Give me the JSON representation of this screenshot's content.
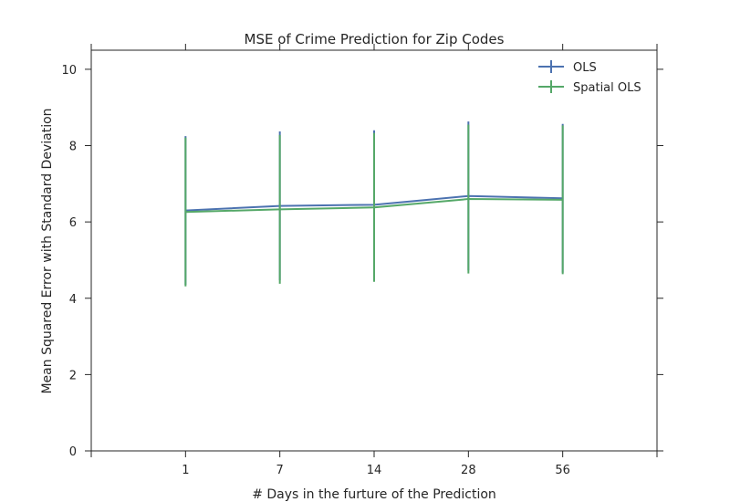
{
  "chart_data": {
    "type": "line",
    "title": "MSE of Crime Prediction for Zip Codes",
    "xlabel": "# Days in the furture of the Prediction",
    "ylabel": "Mean Squared Error with Standard Deviation",
    "categories": [
      "1",
      "7",
      "14",
      "28",
      "56"
    ],
    "xlim": [
      -1,
      5
    ],
    "ylim": [
      0,
      10.5
    ],
    "yticks": [
      0,
      2,
      4,
      6,
      8,
      10
    ],
    "grid": false,
    "legend_position": "top-right",
    "error_bars": true,
    "series": [
      {
        "name": "OLS",
        "color": "#4c72b0",
        "values": [
          6.3,
          6.42,
          6.45,
          6.68,
          6.62
        ],
        "error": [
          1.95,
          1.95,
          1.95,
          1.95,
          1.95
        ]
      },
      {
        "name": "Spatial OLS",
        "color": "#55a868",
        "values": [
          6.26,
          6.33,
          6.38,
          6.6,
          6.58
        ],
        "error": [
          1.95,
          1.95,
          1.95,
          1.95,
          1.95
        ]
      }
    ]
  }
}
